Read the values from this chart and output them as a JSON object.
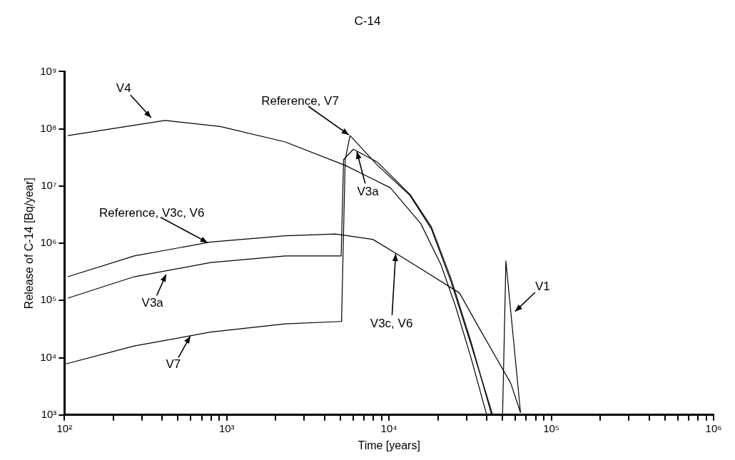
{
  "chart_data": {
    "type": "line",
    "title": "C-14",
    "xlabel": "Time [years]",
    "ylabel": "Release of C-14 [Bq/year]",
    "log": "xy",
    "marker": "none",
    "line_style": "solid",
    "xlim": [
      100,
      1000000
    ],
    "ylim": [
      1000,
      1000000000
    ],
    "xticks": [
      {
        "value": 100,
        "label": "10²"
      },
      {
        "value": 200,
        "label": null
      },
      {
        "value": 300,
        "label": null
      },
      {
        "value": 400,
        "label": null
      },
      {
        "value": 500,
        "label": null
      },
      {
        "value": 600,
        "label": null
      },
      {
        "value": 700,
        "label": null
      },
      {
        "value": 800,
        "label": null
      },
      {
        "value": 900,
        "label": null
      },
      {
        "value": 1000,
        "label": "10³"
      },
      {
        "value": 2000,
        "label": null
      },
      {
        "value": 3000,
        "label": null
      },
      {
        "value": 4000,
        "label": null
      },
      {
        "value": 5000,
        "label": null
      },
      {
        "value": 6000,
        "label": null
      },
      {
        "value": 7000,
        "label": null
      },
      {
        "value": 8000,
        "label": null
      },
      {
        "value": 9000,
        "label": null
      },
      {
        "value": 10000,
        "label": "10⁴"
      },
      {
        "value": 20000,
        "label": null
      },
      {
        "value": 30000,
        "label": null
      },
      {
        "value": 40000,
        "label": null
      },
      {
        "value": 50000,
        "label": null
      },
      {
        "value": 60000,
        "label": null
      },
      {
        "value": 70000,
        "label": null
      },
      {
        "value": 80000,
        "label": null
      },
      {
        "value": 90000,
        "label": null
      },
      {
        "value": 100000,
        "label": "10⁵"
      },
      {
        "value": 200000,
        "label": null
      },
      {
        "value": 300000,
        "label": null
      },
      {
        "value": 400000,
        "label": null
      },
      {
        "value": 500000,
        "label": null
      },
      {
        "value": 600000,
        "label": null
      },
      {
        "value": 700000,
        "label": null
      },
      {
        "value": 800000,
        "label": null
      },
      {
        "value": 900000,
        "label": null
      },
      {
        "value": 1000000,
        "label": "10⁶"
      }
    ],
    "yticks": [
      {
        "value": 1000,
        "label": "10³"
      },
      {
        "value": 10000,
        "label": "10⁴"
      },
      {
        "value": 100000,
        "label": "10⁵"
      },
      {
        "value": 1000000,
        "label": "10⁶"
      },
      {
        "value": 10000000,
        "label": "10⁷"
      },
      {
        "value": 100000000,
        "label": "10⁸"
      },
      {
        "value": 1000000000,
        "label": "10⁹"
      }
    ],
    "series": [
      {
        "color": "#000000",
        "x": [
          105,
          417,
          912,
          2290,
          5370,
          10200,
          15700,
          20900,
          25700,
          32000,
          39800
        ],
        "values": [
          76000000,
          140000000,
          110000000,
          59000000,
          23000000,
          9300000,
          2200000,
          420000,
          79000,
          10000,
          1050
        ]
      },
      {
        "color": "#000000",
        "x": [
          105,
          269,
          794,
          2290,
          4680,
          7940,
          11400,
          16200,
          27200,
          35500,
          45700,
          56200,
          64600
        ],
        "values": [
          260000,
          600000,
          1050000,
          1350000,
          1450000,
          1170000,
          630000,
          340000,
          135000,
          35000,
          10000,
          3600,
          1100
        ]
      },
      {
        "color": "#000000",
        "x": [
          105,
          269,
          794,
          2290,
          5070,
          5100,
          5250,
          6030,
          8510,
          13500,
          18200,
          24000,
          32000,
          42700
        ],
        "values": [
          110000,
          260000,
          460000,
          600000,
          600000,
          600000,
          29000000,
          44000000,
          26000000,
          7100000,
          1950000,
          250000,
          19000,
          1050
        ]
      },
      {
        "color": "#000000",
        "x": [
          102,
          269,
          794,
          2290,
          5070,
          5100,
          5370,
          5750,
          8510,
          13500,
          18200,
          24000,
          32000,
          43300
        ],
        "values": [
          7800,
          16000,
          28000,
          39000,
          43000,
          45000,
          29000000,
          76000000,
          23000000,
          6800000,
          1800000,
          220000,
          17000,
          1050
        ]
      },
      {
        "color": "#000000",
        "x": [
          50100,
          52500,
          64600
        ],
        "values": [
          1050,
          490000,
          1100
        ]
      }
    ],
    "annotations": [
      {
        "text": "V4",
        "x": 347,
        "y": 150000000
      },
      {
        "text": "Reference, V7",
        "x": 5750,
        "y": 76000000
      },
      {
        "text": "V3a",
        "x": 6300,
        "y": 42000000
      },
      {
        "text": "Reference, V3c, V6",
        "x": 776,
        "y": 1000000
      },
      {
        "text": "V3a",
        "x": 427,
        "y": 300000
      },
      {
        "text": "V7",
        "x": 603,
        "y": 25000
      },
      {
        "text": "V3c, V6",
        "x": 11000,
        "y": 690000
      },
      {
        "text": "V1",
        "x": 58900,
        "y": 62000
      }
    ]
  }
}
